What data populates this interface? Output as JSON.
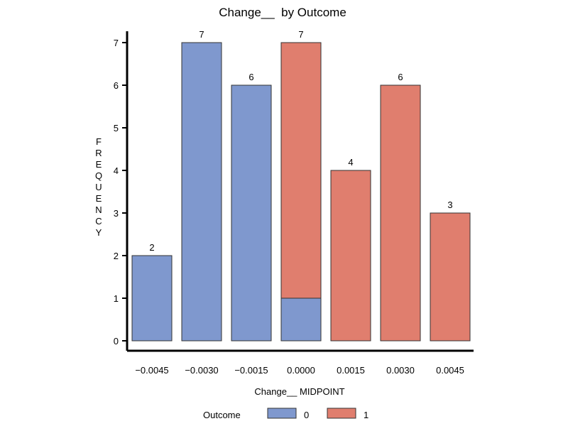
{
  "chart_data": {
    "type": "bar",
    "stacked": true,
    "title": "Change__  by Outcome",
    "xlabel": "Change__ MIDPOINT",
    "ylabel": "FREQUENCY",
    "categories": [
      "−0.0045",
      "−0.0030",
      "−0.0015",
      "0.0000",
      "0.0015",
      "0.0030",
      "0.0045"
    ],
    "series": [
      {
        "name": "0",
        "color": "#7f98ce",
        "values": [
          2,
          7,
          6,
          1,
          0,
          0,
          0
        ]
      },
      {
        "name": "1",
        "color": "#e07e6e",
        "values": [
          0,
          0,
          0,
          6,
          4,
          6,
          3
        ]
      }
    ],
    "totals": [
      2,
      7,
      6,
      7,
      4,
      6,
      3
    ],
    "ylim": [
      0,
      7
    ],
    "yticks": [
      0,
      1,
      2,
      3,
      4,
      5,
      6,
      7
    ],
    "grid": false,
    "legend": {
      "title": "Outcome",
      "placement": "bottom-center"
    }
  }
}
